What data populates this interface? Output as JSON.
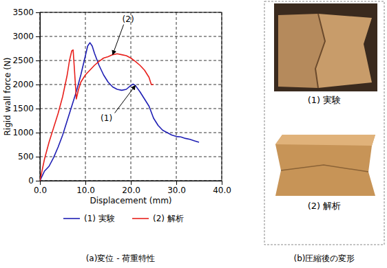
{
  "chart_data": {
    "type": "line",
    "x_label": "Displacement (mm)",
    "y_label": "Rigid wall force (N)",
    "xlim": [
      0,
      40
    ],
    "xticks": [
      {
        "value": 0,
        "label": "0.0"
      },
      {
        "value": 10,
        "label": "10.0"
      },
      {
        "value": 20,
        "label": "20.0"
      },
      {
        "value": 30,
        "label": "30.0"
      },
      {
        "value": 40,
        "label": "40.0"
      }
    ],
    "ylim": [
      0,
      3500
    ],
    "yticks": [
      0,
      500,
      1000,
      1500,
      2000,
      2500,
      3000,
      3500
    ],
    "grid": true,
    "legend": "bottom",
    "annotations": [
      "(1)",
      "(2)"
    ],
    "captions": [
      "(a)変位 - 荷重特性",
      "(b)圧縮後の変形"
    ],
    "photo_captions": [
      "(1) 実験",
      "(2) 解析"
    ],
    "series": [
      {
        "name": "(1) 実験",
        "color": "#1f1fb4",
        "x": [
          0,
          1,
          2,
          3,
          4,
          5,
          6,
          7,
          8,
          9,
          10,
          10.5,
          11,
          11.5,
          12,
          13,
          14,
          15,
          16,
          17,
          18,
          19,
          20,
          20.5,
          21,
          22,
          23,
          24,
          25,
          26,
          27,
          28,
          29,
          30,
          31,
          32,
          33,
          34,
          35
        ],
        "values": [
          0,
          200,
          300,
          480,
          700,
          950,
          1250,
          1550,
          1850,
          2200,
          2600,
          2800,
          2870,
          2800,
          2650,
          2400,
          2200,
          2050,
          1950,
          1900,
          1880,
          1900,
          1980,
          2010,
          1980,
          1850,
          1700,
          1550,
          1300,
          1150,
          1050,
          1000,
          950,
          920,
          910,
          880,
          860,
          830,
          800
        ]
      },
      {
        "name": "(2) 解析",
        "color": "#e8201c",
        "x": [
          0,
          1,
          2,
          3,
          4,
          5,
          6,
          6.5,
          7,
          7.3,
          7.6,
          8,
          8.5,
          9,
          10,
          11,
          12,
          13,
          14,
          15,
          16,
          17,
          18,
          19,
          20,
          21,
          22,
          23,
          24,
          24.5,
          25
        ],
        "values": [
          0,
          450,
          800,
          1100,
          1400,
          1750,
          2200,
          2500,
          2700,
          2720,
          2300,
          1700,
          1900,
          2050,
          2200,
          2300,
          2400,
          2480,
          2550,
          2580,
          2620,
          2640,
          2620,
          2600,
          2550,
          2480,
          2400,
          2300,
          2150,
          2000,
          2000
        ]
      }
    ]
  }
}
